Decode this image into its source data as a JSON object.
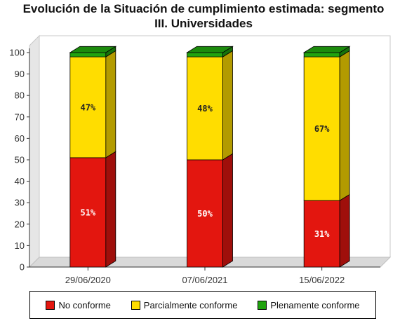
{
  "chart_data": {
    "type": "bar",
    "stacked": true,
    "title": [
      "Evolución de la Situación de cumplimiento estimada: segmento",
      "III. Universidades"
    ],
    "categories": [
      "29/06/2020",
      "07/06/2021",
      "15/06/2022"
    ],
    "ylim": [
      0,
      100
    ],
    "yticks": [
      0,
      10,
      20,
      30,
      40,
      50,
      60,
      70,
      80,
      90,
      100
    ],
    "series": [
      {
        "name": "No conforme",
        "color": "#e3160f",
        "values": [
          51,
          50,
          31
        ],
        "labels": [
          "51%",
          "50%",
          "31%"
        ]
      },
      {
        "name": "Parcialmente conforme",
        "color": "#ffdd00",
        "values": [
          47,
          48,
          67
        ],
        "labels": [
          "47%",
          "48%",
          "67%"
        ]
      },
      {
        "name": "Plenamente conforme",
        "color": "#21a30f",
        "values": [
          2,
          2,
          2
        ],
        "labels": [
          "",
          "",
          ""
        ]
      }
    ],
    "legend_position": "bottom",
    "grid": false
  }
}
